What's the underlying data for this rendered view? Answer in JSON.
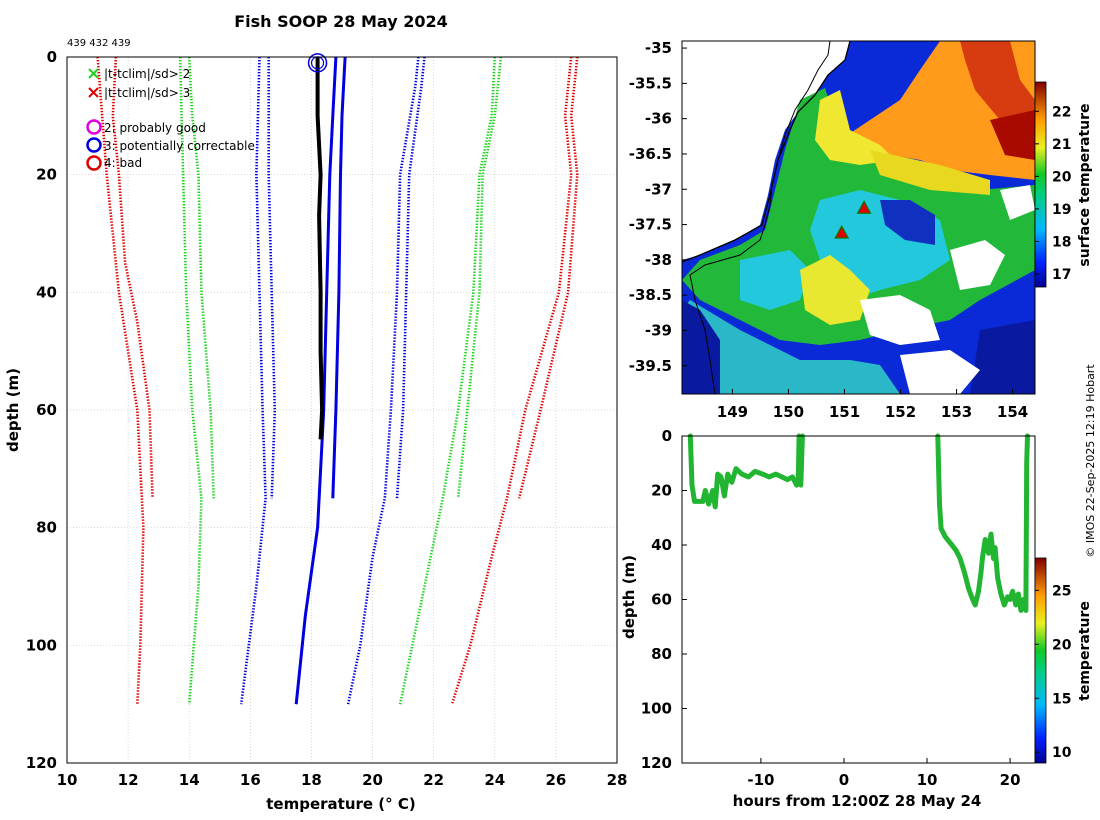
{
  "title": "Fish SOOP 28 May 2024",
  "corner_ids": "439 432 439",
  "credit": "© IMOS 22-Sep-2025 12:19 Hobart",
  "colors": {
    "green": "#1fd41f",
    "red": "#e00000",
    "blue": "#0000e0",
    "magenta": "#e000e0",
    "black": "#000000",
    "track": "#21b531"
  },
  "chart_data": [
    {
      "type": "line",
      "name": "profile",
      "xlabel": "temperature (° C)",
      "ylabel": "depth (m)",
      "xlim": [
        10,
        28
      ],
      "ylim": [
        0,
        120
      ],
      "y_reversed": true,
      "xticks": [
        10,
        12,
        14,
        16,
        18,
        20,
        22,
        24,
        26,
        28
      ],
      "yticks": [
        0,
        20,
        40,
        60,
        80,
        100,
        120
      ],
      "grid": true,
      "legend": [
        {
          "marker": "x",
          "color": "green",
          "label": "|t-tclim|/sd> 2"
        },
        {
          "marker": "x",
          "color": "red",
          "label": "|t-tclim|/sd> 3"
        },
        {
          "marker": "o",
          "color": "magenta",
          "label": "2: probably good"
        },
        {
          "marker": "o",
          "color": "blue",
          "label": "3: potentially correctable"
        },
        {
          "marker": "o",
          "color": "red",
          "label": "4: bad"
        }
      ],
      "series": [
        {
          "name": "clim red left 110",
          "color": "red",
          "dash": true,
          "points": [
            [
              11.0,
              0
            ],
            [
              11.3,
              20
            ],
            [
              11.7,
              40
            ],
            [
              12.3,
              60
            ],
            [
              12.5,
              80
            ],
            [
              12.4,
              100
            ],
            [
              12.3,
              110
            ]
          ]
        },
        {
          "name": "clim red left 75",
          "color": "red",
          "dash": true,
          "points": [
            [
              11.6,
              0
            ],
            [
              11.5,
              10
            ],
            [
              11.7,
              20
            ],
            [
              11.9,
              35
            ],
            [
              12.3,
              45
            ],
            [
              12.7,
              60
            ],
            [
              12.8,
              75
            ]
          ]
        },
        {
          "name": "clim green left 110",
          "color": "green",
          "dash": true,
          "points": [
            [
              13.7,
              0
            ],
            [
              13.8,
              20
            ],
            [
              13.9,
              40
            ],
            [
              14.1,
              60
            ],
            [
              14.4,
              75
            ],
            [
              14.3,
              90
            ],
            [
              14.0,
              110
            ]
          ]
        },
        {
          "name": "clim green left 75",
          "color": "green",
          "dash": true,
          "points": [
            [
              14.0,
              0
            ],
            [
              14.1,
              10
            ],
            [
              14.3,
              20
            ],
            [
              14.4,
              40
            ],
            [
              14.7,
              60
            ],
            [
              14.8,
              75
            ]
          ]
        },
        {
          "name": "clim blue left 110",
          "color": "blue",
          "dash": true,
          "points": [
            [
              16.3,
              0
            ],
            [
              16.2,
              20
            ],
            [
              16.3,
              40
            ],
            [
              16.4,
              60
            ],
            [
              16.5,
              75
            ],
            [
              16.2,
              90
            ],
            [
              15.7,
              110
            ]
          ]
        },
        {
          "name": "clim blue left 75",
          "color": "blue",
          "dash": true,
          "points": [
            [
              16.6,
              0
            ],
            [
              16.6,
              20
            ],
            [
              16.7,
              40
            ],
            [
              16.8,
              60
            ],
            [
              16.7,
              75
            ]
          ]
        },
        {
          "name": "clim blue right 75",
          "color": "blue",
          "dash": true,
          "points": [
            [
              21.7,
              0
            ],
            [
              21.6,
              5
            ],
            [
              21.2,
              20
            ],
            [
              21.1,
              40
            ],
            [
              21.0,
              60
            ],
            [
              20.8,
              75
            ]
          ]
        },
        {
          "name": "clim blue right 110",
          "color": "blue",
          "dash": true,
          "points": [
            [
              21.5,
              0
            ],
            [
              21.4,
              5
            ],
            [
              20.9,
              20
            ],
            [
              20.8,
              40
            ],
            [
              20.6,
              60
            ],
            [
              20.4,
              75
            ],
            [
              20.0,
              85
            ],
            [
              19.6,
              100
            ],
            [
              19.2,
              110
            ]
          ]
        },
        {
          "name": "clim green right 75",
          "color": "green",
          "dash": true,
          "points": [
            [
              24.2,
              0
            ],
            [
              24.0,
              10
            ],
            [
              23.6,
              20
            ],
            [
              23.5,
              40
            ],
            [
              23.1,
              60
            ],
            [
              22.8,
              75
            ]
          ]
        },
        {
          "name": "clim green right 110",
          "color": "green",
          "dash": true,
          "points": [
            [
              24.0,
              0
            ],
            [
              23.9,
              10
            ],
            [
              23.5,
              20
            ],
            [
              23.3,
              40
            ],
            [
              22.8,
              60
            ],
            [
              22.3,
              75
            ],
            [
              21.9,
              85
            ],
            [
              21.3,
              100
            ],
            [
              20.9,
              110
            ]
          ]
        },
        {
          "name": "clim red right 75",
          "color": "red",
          "dash": true,
          "points": [
            [
              26.7,
              0
            ],
            [
              26.5,
              10
            ],
            [
              26.7,
              20
            ],
            [
              26.4,
              40
            ],
            [
              25.5,
              60
            ],
            [
              24.8,
              75
            ]
          ]
        },
        {
          "name": "clim red right 110",
          "color": "red",
          "dash": true,
          "points": [
            [
              26.5,
              0
            ],
            [
              26.3,
              10
            ],
            [
              26.5,
              20
            ],
            [
              26.1,
              40
            ],
            [
              25.0,
              60
            ],
            [
              24.4,
              75
            ],
            [
              23.9,
              85
            ],
            [
              23.2,
              100
            ],
            [
              22.6,
              110
            ]
          ]
        },
        {
          "name": "model blue 75",
          "color": "blue",
          "dash": false,
          "width": 3,
          "points": [
            [
              19.1,
              0
            ],
            [
              19.0,
              10
            ],
            [
              18.95,
              20
            ],
            [
              18.9,
              40
            ],
            [
              18.8,
              60
            ],
            [
              18.7,
              75
            ]
          ]
        },
        {
          "name": "model blue 110",
          "color": "blue",
          "dash": false,
          "width": 3,
          "points": [
            [
              18.8,
              0
            ],
            [
              18.7,
              10
            ],
            [
              18.6,
              20
            ],
            [
              18.5,
              40
            ],
            [
              18.4,
              60
            ],
            [
              18.2,
              80
            ],
            [
              17.8,
              95
            ],
            [
              17.5,
              110
            ]
          ]
        },
        {
          "name": "observed",
          "color": "black",
          "dash": false,
          "width": 4,
          "points": [
            [
              18.2,
              0
            ],
            [
              18.2,
              10
            ],
            [
              18.3,
              20
            ],
            [
              18.25,
              27
            ],
            [
              18.3,
              40
            ],
            [
              18.3,
              50
            ],
            [
              18.35,
              60
            ],
            [
              18.3,
              65
            ]
          ]
        }
      ],
      "markers": [
        {
          "x": 18.2,
          "y": 1,
          "shape": "double-circle",
          "color": "blue"
        }
      ]
    },
    {
      "type": "heatmap",
      "name": "sst-map",
      "xlim": [
        148.1,
        154.4
      ],
      "ylim": [
        -39.9,
        -34.9
      ],
      "xticks": [
        149,
        150,
        151,
        152,
        153,
        154
      ],
      "yticks": [
        -35,
        -35.5,
        -36,
        -36.5,
        -37,
        -37.5,
        -38,
        -38.5,
        -39,
        -39.5
      ],
      "colorbar_label": "surface temperature",
      "colorbar_range": [
        16.6,
        22.9
      ],
      "colorbar_ticks": [
        17,
        18,
        19,
        20,
        21,
        22
      ],
      "stations": [
        [
          151.35,
          -37.27
        ],
        [
          150.95,
          -37.62
        ]
      ]
    },
    {
      "type": "scatter",
      "name": "depth-time",
      "xlabel": "hours from 12:00Z 28 May 24",
      "ylabel": "depth (m)",
      "xlim": [
        -19.5,
        23
      ],
      "ylim": [
        0,
        120
      ],
      "y_reversed": true,
      "xticks": [
        -10,
        0,
        10,
        20
      ],
      "yticks": [
        0,
        20,
        40,
        60,
        80,
        100,
        120
      ],
      "colorbar_label": "temperature",
      "colorbar_range": [
        9,
        28
      ],
      "colorbar_ticks": [
        10,
        15,
        20,
        25
      ],
      "segments": [
        [
          [
            -18.5,
            0
          ],
          [
            -18.3,
            18
          ],
          [
            -18.0,
            24
          ],
          [
            -17.5,
            24
          ],
          [
            -17.0,
            24
          ],
          [
            -16.7,
            20
          ],
          [
            -16.3,
            25
          ],
          [
            -15.8,
            20
          ],
          [
            -15.5,
            26
          ],
          [
            -15.2,
            14
          ],
          [
            -14.8,
            15
          ],
          [
            -14.4,
            22
          ],
          [
            -14.0,
            14
          ],
          [
            -13.5,
            17
          ],
          [
            -13.0,
            12
          ],
          [
            -12.3,
            14
          ],
          [
            -11.5,
            15
          ],
          [
            -10.7,
            13
          ],
          [
            -9.8,
            14
          ],
          [
            -9.0,
            15
          ],
          [
            -8.2,
            14
          ],
          [
            -7.5,
            15
          ],
          [
            -6.8,
            16
          ],
          [
            -6.2,
            15
          ],
          [
            -5.7,
            18
          ],
          [
            -5.5,
            16
          ],
          [
            -5.4,
            0
          ],
          [
            -5.2,
            18
          ],
          [
            -5.0,
            0
          ]
        ],
        [
          [
            11.3,
            0
          ],
          [
            11.5,
            25
          ],
          [
            11.7,
            34
          ],
          [
            12.2,
            37
          ],
          [
            13.0,
            40
          ],
          [
            13.5,
            42
          ],
          [
            14.0,
            45
          ],
          [
            14.5,
            50
          ],
          [
            15.0,
            56
          ],
          [
            15.5,
            60
          ],
          [
            15.8,
            62
          ],
          [
            16.2,
            57
          ],
          [
            16.5,
            50
          ],
          [
            16.7,
            44
          ],
          [
            17.0,
            38
          ],
          [
            17.4,
            43
          ],
          [
            17.7,
            36
          ],
          [
            18.0,
            45
          ],
          [
            18.2,
            41
          ],
          [
            18.5,
            52
          ],
          [
            18.9,
            58
          ],
          [
            19.3,
            62
          ],
          [
            19.7,
            59
          ],
          [
            20.0,
            60
          ],
          [
            20.3,
            57
          ],
          [
            20.7,
            62
          ],
          [
            21.0,
            58
          ],
          [
            21.3,
            64
          ],
          [
            21.6,
            60
          ],
          [
            21.9,
            64
          ],
          [
            22.0,
            10
          ],
          [
            22.1,
            0
          ]
        ]
      ]
    }
  ]
}
